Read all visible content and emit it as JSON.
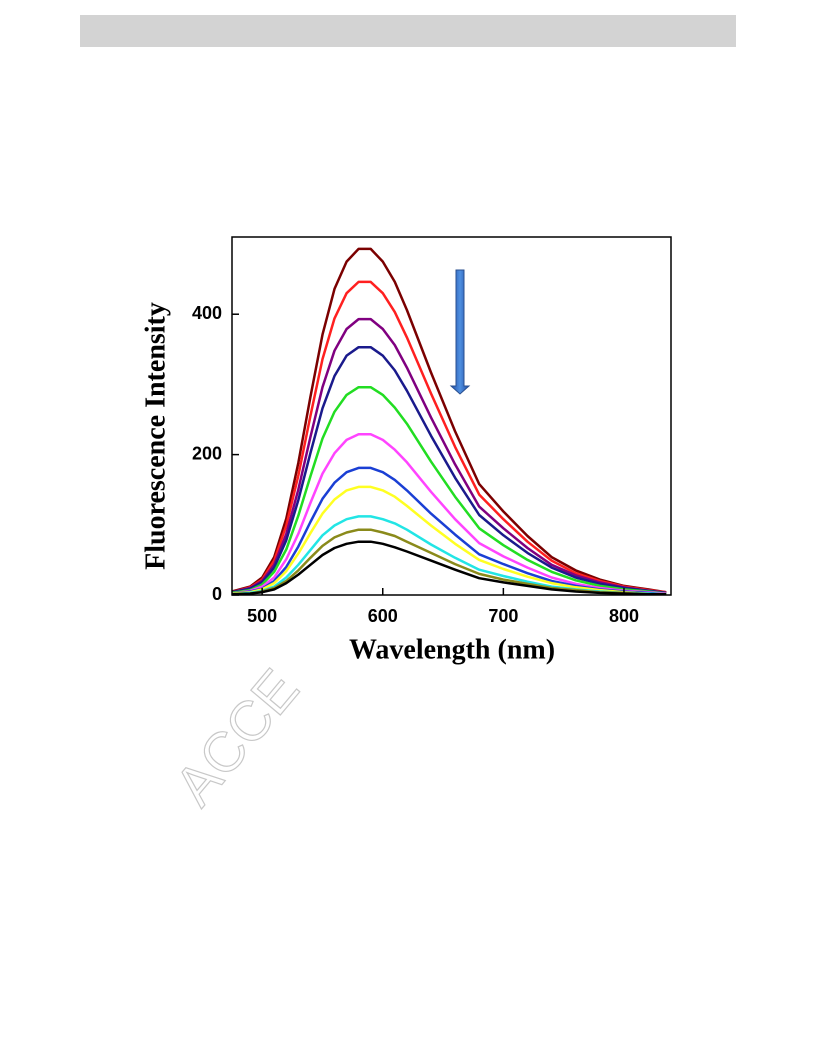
{
  "watermark": "ACCE",
  "chart_data": {
    "type": "line",
    "xlabel": "Wavelength (nm)",
    "ylabel": "Fluorescence Intensity",
    "x": [
      475,
      490,
      500,
      510,
      520,
      530,
      540,
      550,
      560,
      570,
      580,
      590,
      600,
      610,
      620,
      640,
      660,
      680,
      700,
      720,
      740,
      760,
      780,
      800,
      820,
      835
    ],
    "xlim": [
      475,
      839
    ],
    "xticks": [
      500,
      600,
      700,
      800
    ],
    "ylim": [
      0,
      510
    ],
    "yticks": [
      0,
      200,
      400
    ],
    "series": [
      {
        "color": "#7b0000",
        "values": [
          5,
          12,
          25,
          54,
          109,
          188,
          282,
          371,
          436,
          475,
          493,
          493,
          475,
          446,
          406,
          317,
          233,
          158,
          119,
          84,
          54,
          35,
          22,
          13,
          8,
          4
        ]
      },
      {
        "color": "#ff2020",
        "values": [
          4,
          11,
          22,
          49,
          99,
          170,
          255,
          336,
          394,
          430,
          446,
          446,
          430,
          403,
          367,
          287,
          211,
          143,
          108,
          76,
          49,
          31,
          20,
          12,
          7,
          4
        ]
      },
      {
        "color": "#800080",
        "values": [
          4,
          10,
          20,
          43,
          87,
          150,
          225,
          296,
          348,
          379,
          393,
          393,
          379,
          356,
          324,
          253,
          186,
          126,
          95,
          67,
          43,
          28,
          18,
          11,
          6,
          3
        ]
      },
      {
        "color": "#1a1a8c",
        "values": [
          4,
          9,
          18,
          39,
          78,
          135,
          202,
          266,
          312,
          341,
          353,
          353,
          341,
          320,
          291,
          227,
          167,
          114,
          85,
          60,
          39,
          25,
          16,
          10,
          6,
          3
        ]
      },
      {
        "color": "#22dd22",
        "values": [
          3,
          7,
          15,
          33,
          65,
          113,
          169,
          223,
          261,
          285,
          296,
          296,
          285,
          267,
          244,
          190,
          140,
          95,
          71,
          50,
          33,
          21,
          13,
          8,
          5,
          2
        ]
      },
      {
        "color": "#ff44ff",
        "values": [
          2,
          6,
          12,
          25,
          51,
          87,
          131,
          173,
          202,
          221,
          229,
          229,
          221,
          207,
          189,
          147,
          108,
          74,
          55,
          39,
          25,
          16,
          10,
          6,
          4,
          2
        ]
      },
      {
        "color": "#1a3fd4",
        "values": [
          2,
          5,
          9,
          20,
          40,
          69,
          104,
          137,
          160,
          175,
          181,
          181,
          175,
          164,
          149,
          116,
          86,
          58,
          44,
          31,
          20,
          13,
          8,
          5,
          3,
          1
        ]
      },
      {
        "color": "#ffff22",
        "values": [
          2,
          4,
          8,
          17,
          34,
          59,
          88,
          116,
          136,
          149,
          154,
          154,
          149,
          140,
          127,
          99,
          73,
          50,
          37,
          26,
          17,
          11,
          7,
          4,
          2,
          1
        ]
      },
      {
        "color": "#22e5e5",
        "values": [
          1,
          3,
          6,
          12,
          25,
          43,
          64,
          85,
          99,
          108,
          112,
          112,
          108,
          102,
          93,
          72,
          53,
          36,
          27,
          19,
          12,
          8,
          5,
          3,
          2,
          1
        ]
      },
      {
        "color": "#8a8a1a",
        "values": [
          1,
          2,
          5,
          10,
          20,
          35,
          53,
          70,
          82,
          89,
          93,
          93,
          89,
          84,
          76,
          60,
          44,
          30,
          22,
          16,
          10,
          7,
          4,
          3,
          1,
          1
        ]
      },
      {
        "color": "#000000",
        "values": [
          1,
          2,
          4,
          8,
          17,
          29,
          43,
          57,
          67,
          73,
          76,
          76,
          73,
          68,
          62,
          49,
          36,
          24,
          18,
          13,
          8,
          5,
          3,
          2,
          1,
          1
        ]
      }
    ]
  }
}
